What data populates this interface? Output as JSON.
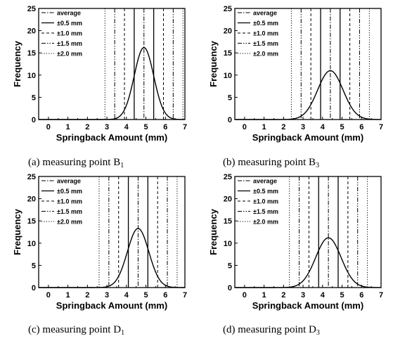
{
  "chart_data": [
    {
      "type": "line",
      "caption": "(a) measuring point B",
      "caption_sub": "1",
      "xlabel": "Springback Amount (mm)",
      "ylabel": "Frequency",
      "xlim": [
        -0.5,
        7
      ],
      "ylim": [
        0,
        25
      ],
      "xticks": [
        0,
        1,
        2,
        3,
        4,
        5,
        6,
        7
      ],
      "yticks": [
        0,
        5,
        10,
        15,
        20,
        25
      ],
      "legend_position": "top-left",
      "legend": [
        {
          "label": "average",
          "style": "dashdot"
        },
        {
          "label": "±0.5 mm",
          "style": "solid"
        },
        {
          "label": "±1.0 mm",
          "style": "dash"
        },
        {
          "label": "±1.5 mm",
          "style": "dashdotdot"
        },
        {
          "label": "±2.0 mm",
          "style": "dot"
        }
      ],
      "distribution": {
        "mean": 4.9,
        "sd": 0.5,
        "peak": 16.2
      },
      "vertical_lines": [
        {
          "x": 4.9,
          "style": "dashdot"
        },
        {
          "x": 4.4,
          "style": "solid"
        },
        {
          "x": 5.4,
          "style": "solid"
        },
        {
          "x": 3.9,
          "style": "dash"
        },
        {
          "x": 5.9,
          "style": "dash"
        },
        {
          "x": 3.4,
          "style": "dashdotdot"
        },
        {
          "x": 6.4,
          "style": "dashdotdot"
        },
        {
          "x": 2.9,
          "style": "dot"
        },
        {
          "x": 6.9,
          "style": "dot"
        }
      ]
    },
    {
      "type": "line",
      "caption": "(b) measuring point B",
      "caption_sub": "3",
      "xlabel": "Springback Amount (mm)",
      "ylabel": "Frequency",
      "xlim": [
        -0.5,
        7
      ],
      "ylim": [
        0,
        25
      ],
      "xticks": [
        0,
        1,
        2,
        3,
        4,
        5,
        6,
        7
      ],
      "yticks": [
        0,
        5,
        10,
        15,
        20,
        25
      ],
      "legend_position": "top-left",
      "legend": [
        {
          "label": "average",
          "style": "dashdot"
        },
        {
          "label": "±0.5 mm",
          "style": "solid"
        },
        {
          "label": "±1.0 mm",
          "style": "dash"
        },
        {
          "label": "±1.5 mm",
          "style": "dashdotdot"
        },
        {
          "label": "±2.0 mm",
          "style": "dot"
        }
      ],
      "distribution": {
        "mean": 4.4,
        "sd": 0.65,
        "peak": 11.0
      },
      "vertical_lines": [
        {
          "x": 4.4,
          "style": "dashdot"
        },
        {
          "x": 3.9,
          "style": "solid"
        },
        {
          "x": 4.9,
          "style": "solid"
        },
        {
          "x": 3.4,
          "style": "dash"
        },
        {
          "x": 5.4,
          "style": "dash"
        },
        {
          "x": 2.9,
          "style": "dashdotdot"
        },
        {
          "x": 5.9,
          "style": "dashdotdot"
        },
        {
          "x": 2.4,
          "style": "dot"
        },
        {
          "x": 6.4,
          "style": "dot"
        }
      ]
    },
    {
      "type": "line",
      "caption": "(c) measuring point D",
      "caption_sub": "1",
      "xlabel": "Springback Amount (mm)",
      "ylabel": "Frequency",
      "xlim": [
        -0.5,
        7
      ],
      "ylim": [
        0,
        25
      ],
      "xticks": [
        0,
        1,
        2,
        3,
        4,
        5,
        6,
        7
      ],
      "yticks": [
        0,
        5,
        10,
        15,
        20,
        25
      ],
      "legend_position": "top-left",
      "legend": [
        {
          "label": "average",
          "style": "dashdot"
        },
        {
          "label": "±0.5 mm",
          "style": "solid"
        },
        {
          "label": "±1.0 mm",
          "style": "dash"
        },
        {
          "label": "±1.5 mm",
          "style": "dashdotdot"
        },
        {
          "label": "±2.0 mm",
          "style": "dot"
        }
      ],
      "distribution": {
        "mean": 4.6,
        "sd": 0.55,
        "peak": 13.3
      },
      "vertical_lines": [
        {
          "x": 4.6,
          "style": "dashdot"
        },
        {
          "x": 4.1,
          "style": "solid"
        },
        {
          "x": 5.1,
          "style": "solid"
        },
        {
          "x": 3.6,
          "style": "dash"
        },
        {
          "x": 5.6,
          "style": "dash"
        },
        {
          "x": 3.1,
          "style": "dashdotdot"
        },
        {
          "x": 6.1,
          "style": "dashdotdot"
        },
        {
          "x": 2.6,
          "style": "dot"
        },
        {
          "x": 6.6,
          "style": "dot"
        }
      ]
    },
    {
      "type": "line",
      "caption": "(d) measuring point D",
      "caption_sub": "3",
      "xlabel": "Springback Amount (mm)",
      "ylabel": "Frequency",
      "xlim": [
        -0.5,
        7
      ],
      "ylim": [
        0,
        25
      ],
      "xticks": [
        0,
        1,
        2,
        3,
        4,
        5,
        6,
        7
      ],
      "yticks": [
        0,
        5,
        10,
        15,
        20,
        25
      ],
      "legend_position": "top-left",
      "legend": [
        {
          "label": "average",
          "style": "dashdot"
        },
        {
          "label": "±0.5 mm",
          "style": "solid"
        },
        {
          "label": "±1.0 mm",
          "style": "dash"
        },
        {
          "label": "±1.5 mm",
          "style": "dashdotdot"
        },
        {
          "label": "±2.0 mm",
          "style": "dot"
        }
      ],
      "distribution": {
        "mean": 4.3,
        "sd": 0.65,
        "peak": 11.2
      },
      "vertical_lines": [
        {
          "x": 4.3,
          "style": "dashdot"
        },
        {
          "x": 3.8,
          "style": "solid"
        },
        {
          "x": 4.8,
          "style": "solid"
        },
        {
          "x": 3.3,
          "style": "dash"
        },
        {
          "x": 5.3,
          "style": "dash"
        },
        {
          "x": 2.8,
          "style": "dashdotdot"
        },
        {
          "x": 5.8,
          "style": "dashdotdot"
        },
        {
          "x": 2.3,
          "style": "dot"
        },
        {
          "x": 6.3,
          "style": "dot"
        }
      ]
    }
  ]
}
